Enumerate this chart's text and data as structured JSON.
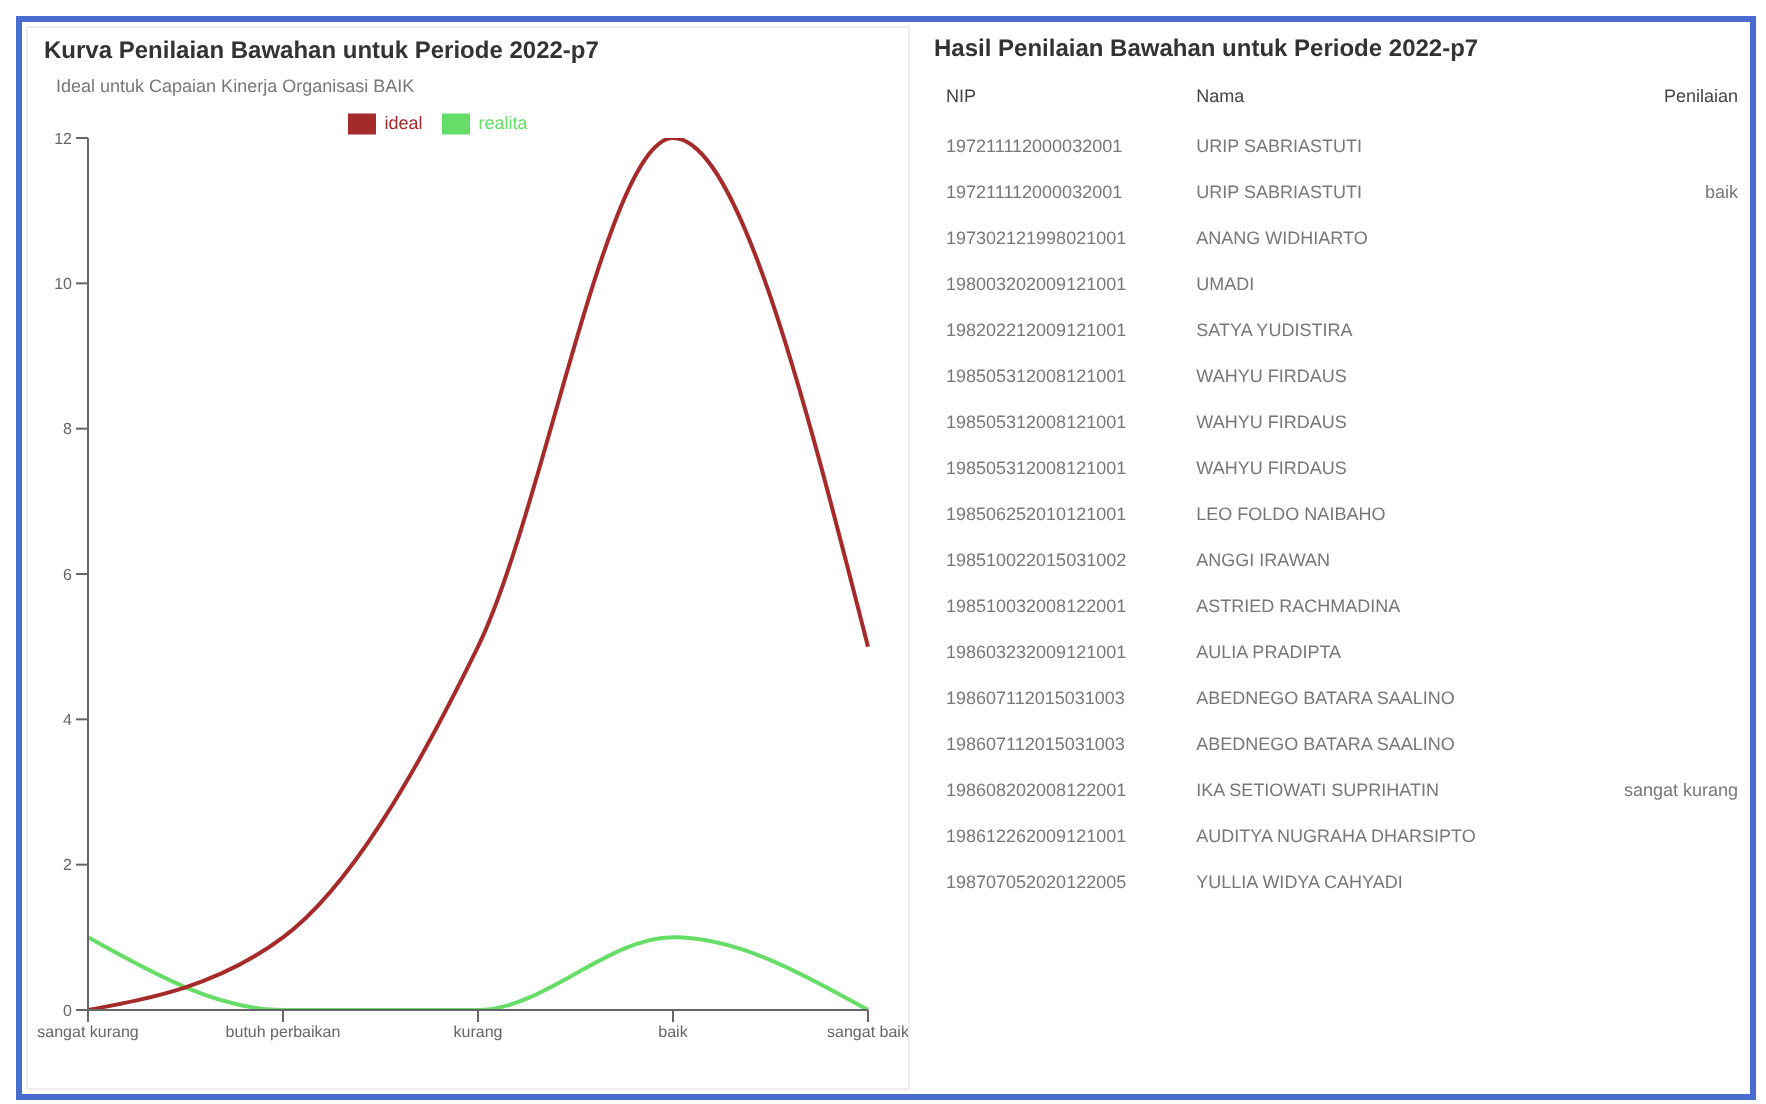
{
  "chart_data": [
    {
      "type": "line",
      "title": "Kurva Penilaian Bawahan untuk Periode 2022-p7",
      "subtitle": "Ideal untuk Capaian Kinerja Organisasi BAIK",
      "categories": [
        "sangat kurang",
        "butuh perbaikan",
        "kurang",
        "baik",
        "sangat baik"
      ],
      "series": [
        {
          "name": "realita",
          "color": "#66dd66",
          "values": [
            1,
            0,
            0,
            1,
            0
          ]
        },
        {
          "name": "ideal",
          "color": "#a52a2a",
          "values": [
            0,
            1,
            5,
            12,
            5
          ]
        }
      ],
      "ylim": [
        0,
        12
      ],
      "yticks": [
        0,
        2,
        4,
        6,
        8,
        10,
        12
      ],
      "legend": "top",
      "marker": "none",
      "line_style": "solid"
    },
    {
      "type": "other",
      "title": "Hasil Penilaian Bawahan untuk Periode 2022-p7",
      "categories": [
        "NIP",
        "Nama",
        "Penilaian"
      ],
      "cell_labels": [
        [
          "197211112000032001",
          "URIP SABRIASTUTI",
          null
        ],
        [
          "197211112000032001",
          "URIP SABRIASTUTI",
          "baik"
        ],
        [
          "197302121998021001",
          "ANANG WIDHIARTO",
          null
        ],
        [
          "198003202009121001",
          "UMADI",
          null
        ],
        [
          "198202212009121001",
          "SATYA YUDISTIRA",
          null
        ],
        [
          "198505312008121001",
          "WAHYU FIRDAUS",
          null
        ],
        [
          "198505312008121001",
          "WAHYU FIRDAUS",
          null
        ],
        [
          "198505312008121001",
          "WAHYU FIRDAUS",
          null
        ],
        [
          "198506252010121001",
          "LEO FOLDO NAIBAHO",
          null
        ],
        [
          "198510022015031002",
          "ANGGI IRAWAN",
          null
        ],
        [
          "198510032008122001",
          "ASTRIED RACHMADINA",
          null
        ],
        [
          "198603232009121001",
          "AULIA PRADIPTA",
          null
        ],
        [
          "198607112015031003",
          "ABEDNEGO BATARA SAALINO",
          null
        ],
        [
          "198607112015031003",
          "ABEDNEGO BATARA SAALINO",
          null
        ],
        [
          "198608202008122001",
          "IKA SETIOWATI SUPRIHATIN",
          "sangat kurang"
        ],
        [
          "198612262009121001",
          "AUDITYA NUGRAHA DHARSIPTO",
          null
        ],
        [
          "198707052020122005",
          "YULLIA WIDYA CAHYADI",
          null
        ]
      ]
    }
  ]
}
